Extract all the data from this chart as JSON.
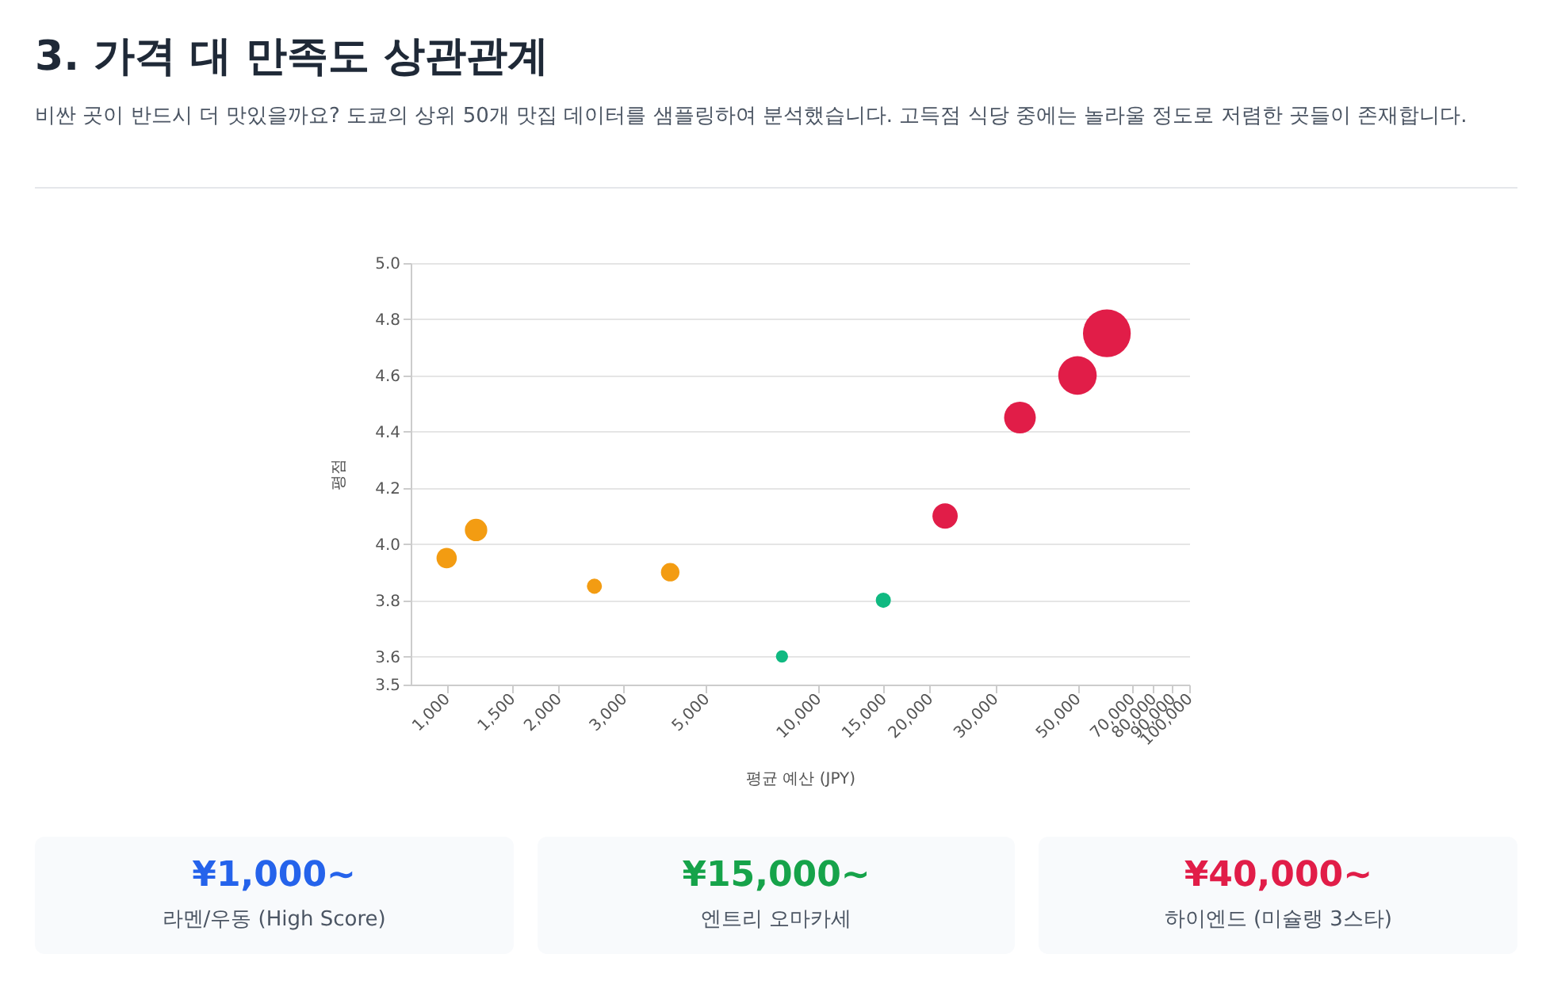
{
  "chart_data": [
    {
      "type": "bubble",
      "title": "3. 가격 대 만족도 상관관계",
      "subtitle": "비싼 곳이 반드시 더 맛있을까요? 도쿄의 상위 50개 맛집 데이터를 샘플링하여 분석했습니다. 고득점 식당 중에는 놀라울 정도로 저렴한 곳들이 존재합니다.",
      "xlabel": "평균 예산 (JPY)",
      "ylabel": "평점",
      "log": "x",
      "grid": "y",
      "xlim": [
        800,
        100000
      ],
      "ylim": [
        3.5,
        5.0
      ],
      "xticks": [
        {
          "value": 1000,
          "label": "1,000"
        },
        {
          "value": 1500,
          "label": "1,500"
        },
        {
          "value": 2000,
          "label": "2,000"
        },
        {
          "value": 3000,
          "label": "3,000"
        },
        {
          "value": 5000,
          "label": "5,000"
        },
        {
          "value": 10000,
          "label": "10,000"
        },
        {
          "value": 15000,
          "label": "15,000"
        },
        {
          "value": 20000,
          "label": "20,000"
        },
        {
          "value": 30000,
          "label": "30,000"
        },
        {
          "value": 50000,
          "label": "50,000"
        },
        {
          "value": 70000,
          "label": "70,000"
        },
        {
          "value": 80000,
          "label": "80,000"
        },
        {
          "value": 90000,
          "label": "90,000"
        },
        {
          "value": 100000,
          "label": "100,000"
        }
      ],
      "yticks": [
        3.5,
        3.6,
        3.8,
        {
          "value": 4.0,
          "label": "4.0"
        },
        4.2,
        4.4,
        4.6,
        4.8,
        {
          "value": 5.0,
          "label": "5.0"
        }
      ],
      "series": [
        {
          "color": "#f39c12",
          "x": [
            1000,
            1200,
            2500,
            4000
          ],
          "values": [
            3.95,
            4.05,
            3.85,
            3.9
          ],
          "sizes": [
            0.18,
            0.22,
            0.1,
            0.15
          ]
        },
        {
          "color": "#10b981",
          "x": [
            8000,
            15000
          ],
          "values": [
            3.6,
            3.8
          ],
          "sizes": [
            0.065,
            0.1
          ]
        },
        {
          "color": "#e11d48",
          "x": [
            22000,
            35000,
            50000,
            60000
          ],
          "values": [
            4.1,
            4.45,
            4.6,
            4.75
          ],
          "sizes": [
            0.28,
            0.44,
            0.65,
            1
          ]
        }
      ]
    },
    {
      "type": "other",
      "series": [
        {
          "name": "¥1,000~",
          "color": "#2563eb"
        },
        {
          "name": "¥15,000~",
          "color": "#16a34a"
        },
        {
          "name": "¥40,000~",
          "color": "#e11d48"
        }
      ],
      "annotations": [
        "라멘/우동 (High Score)",
        "엔트리 오마카세",
        "하이엔드 (미슐랭 3스타)"
      ]
    }
  ]
}
